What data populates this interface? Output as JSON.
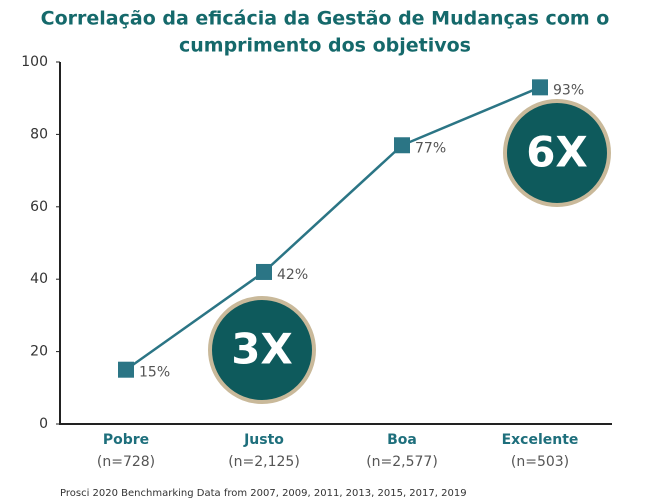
{
  "chart_data": {
    "type": "line",
    "title_lines": [
      "Correlação da eficácia da Gestão de Mudanças com o",
      "cumprimento dos objetivos"
    ],
    "categories": [
      "Pobre",
      "Justo",
      "Boa",
      "Excelente"
    ],
    "category_notes": [
      "(n=728)",
      "(n=2,125)",
      "(n=2,577)",
      "(n=503)"
    ],
    "values": [
      15,
      42,
      77,
      93
    ],
    "value_labels": [
      "15%",
      "42%",
      "77%",
      "93%"
    ],
    "color": "#2b7585",
    "ylim": [
      0,
      100
    ],
    "yticks": [
      0,
      20,
      40,
      60,
      80,
      100
    ],
    "annotations": [
      "3X",
      "6X"
    ],
    "source": "Prosci 2020 Benchmarking Data from 2007, 2009, 2011, 2013, 2015, 2017, 2019"
  }
}
